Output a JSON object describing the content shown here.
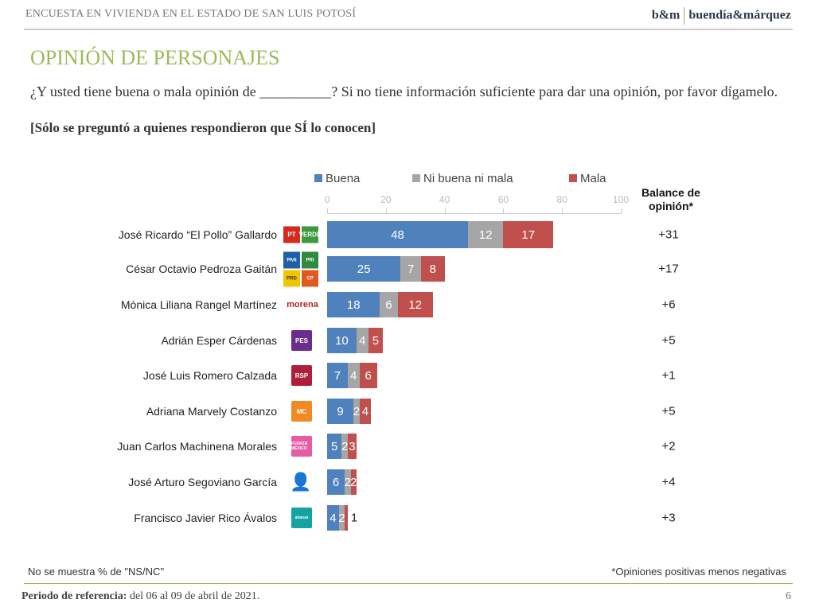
{
  "header": {
    "survey": "ENCUESTA EN VIVIENDA EN EL ESTADO DE SAN LUIS POTOSÍ",
    "brand_short": "b&m",
    "brand_long": "buendía&márquez"
  },
  "title": "OPINIÓN DE PERSONAJES",
  "question": "¿Y usted tiene buena o mala opinión de __________? Si no tiene información suficiente para dar una opinión, por favor dígamelo.",
  "note": "[Sólo se preguntó a quienes respondieron que SÍ lo conocen]",
  "footer": {
    "left": "No se muestra % de \"NS/NC\"",
    "right": "*Opiniones positivas menos negativas",
    "period_label": "Periodo de referencia:",
    "period_value": " del 06 al 09 de abril de 2021.",
    "page": "6"
  },
  "chart_data": {
    "type": "bar",
    "orientation": "horizontal",
    "stacked": true,
    "xlim": [
      0,
      100
    ],
    "xticks": [
      "0",
      "20",
      "40",
      "60",
      "80",
      "100"
    ],
    "legend_position": "top",
    "balance_header": "Balance de opinión*",
    "colors": {
      "Buena": "#4f81bd",
      "Ni buena ni mala": "#a6a6a6",
      "Mala": "#c0504d"
    },
    "categories": [
      "José Ricardo “El Pollo” Gallardo",
      "César Octavio Pedroza Gaitán",
      "Mónica Liliana Rangel Martínez",
      "Adrián Esper Cárdenas",
      "José Luis Romero Calzada",
      "Adriana Marvely Costanzo",
      "Juan Carlos Machinena Morales",
      "José Arturo Segoviano García",
      "Francisco Javier Rico Ávalos"
    ],
    "logos": [
      [
        "PT",
        "VERDE"
      ],
      [
        "PAN",
        "PRI",
        "PRD",
        "CP"
      ],
      [
        "morena"
      ],
      [
        "PES"
      ],
      [
        "RSP"
      ],
      [
        "MC"
      ],
      [
        "FUERZA MÉXICO"
      ],
      [
        "candidato independiente"
      ],
      [
        "alianza"
      ]
    ],
    "series": [
      {
        "name": "Buena",
        "values": [
          48,
          25,
          18,
          10,
          7,
          9,
          5,
          6,
          4
        ]
      },
      {
        "name": "Ni buena ni mala",
        "values": [
          12,
          7,
          6,
          4,
          4,
          2,
          2,
          2,
          2
        ]
      },
      {
        "name": "Mala",
        "values": [
          17,
          8,
          12,
          5,
          6,
          4,
          3,
          2,
          1
        ]
      }
    ],
    "balance": [
      "+31",
      "+17",
      "+6",
      "+5",
      "+1",
      "+5",
      "+2",
      "+4",
      "+3"
    ]
  }
}
